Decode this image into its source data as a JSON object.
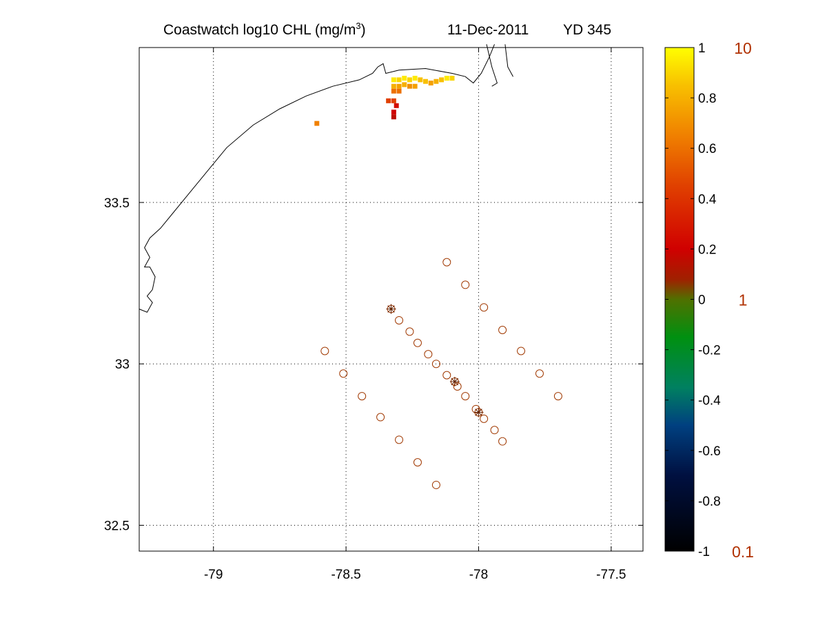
{
  "chart_data": {
    "type": "scatter",
    "title": {
      "left_text": "Coastwatch  log10  CHL (mg/m",
      "superscript": "3",
      "left_close": ")",
      "date": "11-Dec-2011",
      "yearday": "YD 345"
    },
    "xlim": [
      -79.28,
      -77.38
    ],
    "ylim": [
      32.42,
      33.98
    ],
    "xticks": [
      {
        "value": -79,
        "label": "-79"
      },
      {
        "value": -78.5,
        "label": "-78.5"
      },
      {
        "value": -78,
        "label": "-78"
      },
      {
        "value": -77.5,
        "label": "-77.5"
      }
    ],
    "yticks": [
      {
        "value": 33.5,
        "label": "33.5"
      },
      {
        "value": 33,
        "label": "33"
      },
      {
        "value": 32.5,
        "label": "32.5"
      }
    ],
    "grid": true,
    "colorbar": {
      "range": [
        -1,
        1
      ],
      "ticks": [
        "1",
        "0.8",
        "0.6",
        "0.4",
        "0.2",
        "0",
        "-0.2",
        "-0.4",
        "-0.6",
        "-0.8",
        "-1"
      ],
      "tick_values": [
        1,
        0.8,
        0.6,
        0.4,
        0.2,
        0,
        -0.2,
        -0.4,
        -0.6,
        -0.8,
        -1
      ],
      "right_labels": [
        "10",
        "1",
        "0.1"
      ],
      "right_label_values": [
        1,
        0,
        -1
      ],
      "right_label_color": "#b03000",
      "stops": [
        {
          "v": -1.0,
          "color": "#000000"
        },
        {
          "v": -0.7,
          "color": "#001040"
        },
        {
          "v": -0.5,
          "color": "#004080"
        },
        {
          "v": -0.35,
          "color": "#008060"
        },
        {
          "v": -0.15,
          "color": "#009010"
        },
        {
          "v": 0.0,
          "color": "#507000"
        },
        {
          "v": 0.08,
          "color": "#a02000"
        },
        {
          "v": 0.2,
          "color": "#d00000"
        },
        {
          "v": 0.45,
          "color": "#e04000"
        },
        {
          "v": 0.65,
          "color": "#f08000"
        },
        {
          "v": 0.85,
          "color": "#f8c000"
        },
        {
          "v": 1.0,
          "color": "#ffff00"
        }
      ]
    },
    "coastline": [
      [
        -79.28,
        33.17
      ],
      [
        -79.25,
        33.16
      ],
      [
        -79.23,
        33.19
      ],
      [
        -79.25,
        33.21
      ],
      [
        -79.23,
        33.23
      ],
      [
        -79.22,
        33.27
      ],
      [
        -79.24,
        33.3
      ],
      [
        -79.26,
        33.3
      ],
      [
        -79.24,
        33.33
      ],
      [
        -79.26,
        33.36
      ],
      [
        -79.24,
        33.39
      ],
      [
        -79.2,
        33.42
      ],
      [
        -79.15,
        33.47
      ],
      [
        -79.08,
        33.54
      ],
      [
        -79.02,
        33.6
      ],
      [
        -78.95,
        33.67
      ],
      [
        -78.85,
        33.74
      ],
      [
        -78.75,
        33.79
      ],
      [
        -78.65,
        33.83
      ],
      [
        -78.55,
        33.86
      ],
      [
        -78.45,
        33.88
      ],
      [
        -78.4,
        33.9
      ],
      [
        -78.38,
        33.92
      ],
      [
        -78.36,
        33.93
      ],
      [
        -78.35,
        33.9
      ],
      [
        -78.3,
        33.91
      ],
      [
        -78.2,
        33.915
      ],
      [
        -78.1,
        33.9
      ],
      [
        -78.05,
        33.89
      ],
      [
        -78.02,
        33.87
      ],
      [
        -77.99,
        33.9
      ],
      [
        -77.96,
        33.95
      ],
      [
        -77.94,
        33.99
      ]
    ],
    "coastline_segments": [
      [
        [
          -77.97,
          33.99
        ],
        [
          -77.95,
          33.92
        ],
        [
          -77.93,
          33.87
        ],
        [
          -77.95,
          33.86
        ]
      ],
      [
        [
          -77.9,
          33.99
        ],
        [
          -77.89,
          33.92
        ],
        [
          -77.87,
          33.89
        ]
      ]
    ],
    "chl_pixels": [
      {
        "lon": -78.32,
        "lat": 33.88,
        "v": 0.95
      },
      {
        "lon": -78.3,
        "lat": 33.88,
        "v": 0.9
      },
      {
        "lon": -78.28,
        "lat": 33.885,
        "v": 0.95
      },
      {
        "lon": -78.26,
        "lat": 33.88,
        "v": 0.9
      },
      {
        "lon": -78.24,
        "lat": 33.885,
        "v": 0.95
      },
      {
        "lon": -78.22,
        "lat": 33.88,
        "v": 0.85
      },
      {
        "lon": -78.2,
        "lat": 33.875,
        "v": 0.85
      },
      {
        "lon": -78.18,
        "lat": 33.87,
        "v": 0.75
      },
      {
        "lon": -78.16,
        "lat": 33.875,
        "v": 0.8
      },
      {
        "lon": -78.14,
        "lat": 33.88,
        "v": 0.85
      },
      {
        "lon": -78.12,
        "lat": 33.885,
        "v": 0.95
      },
      {
        "lon": -78.1,
        "lat": 33.885,
        "v": 0.9
      },
      {
        "lon": -78.32,
        "lat": 33.86,
        "v": 0.8
      },
      {
        "lon": -78.3,
        "lat": 33.86,
        "v": 0.75
      },
      {
        "lon": -78.28,
        "lat": 33.865,
        "v": 0.8
      },
      {
        "lon": -78.26,
        "lat": 33.86,
        "v": 0.7
      },
      {
        "lon": -78.24,
        "lat": 33.86,
        "v": 0.75
      },
      {
        "lon": -78.32,
        "lat": 33.845,
        "v": 0.6
      },
      {
        "lon": -78.3,
        "lat": 33.845,
        "v": 0.6
      },
      {
        "lon": -78.34,
        "lat": 33.815,
        "v": 0.45
      },
      {
        "lon": -78.32,
        "lat": 33.815,
        "v": 0.45
      },
      {
        "lon": -78.31,
        "lat": 33.8,
        "v": 0.25
      },
      {
        "lon": -78.32,
        "lat": 33.78,
        "v": 0.2
      },
      {
        "lon": -78.32,
        "lat": 33.765,
        "v": 0.15
      },
      {
        "lon": -78.61,
        "lat": 33.745,
        "v": 0.65
      }
    ],
    "stations": [
      {
        "lon": -78.12,
        "lat": 33.315,
        "star": false
      },
      {
        "lon": -78.05,
        "lat": 33.245,
        "star": false
      },
      {
        "lon": -77.98,
        "lat": 33.175,
        "star": false
      },
      {
        "lon": -77.91,
        "lat": 33.105,
        "star": false
      },
      {
        "lon": -77.84,
        "lat": 33.04,
        "star": false
      },
      {
        "lon": -77.77,
        "lat": 32.97,
        "star": false
      },
      {
        "lon": -77.7,
        "lat": 32.9,
        "star": false
      },
      {
        "lon": -78.33,
        "lat": 33.17,
        "star": true
      },
      {
        "lon": -78.3,
        "lat": 33.135,
        "star": false
      },
      {
        "lon": -78.26,
        "lat": 33.1,
        "star": false
      },
      {
        "lon": -78.23,
        "lat": 33.065,
        "star": false
      },
      {
        "lon": -78.19,
        "lat": 33.03,
        "star": false
      },
      {
        "lon": -78.16,
        "lat": 33.0,
        "star": false
      },
      {
        "lon": -78.12,
        "lat": 32.965,
        "star": false
      },
      {
        "lon": -78.09,
        "lat": 32.945,
        "star": true
      },
      {
        "lon": -78.08,
        "lat": 32.93,
        "star": false
      },
      {
        "lon": -78.05,
        "lat": 32.9,
        "star": false
      },
      {
        "lon": -78.01,
        "lat": 32.86,
        "star": false
      },
      {
        "lon": -78.0,
        "lat": 32.85,
        "star": true
      },
      {
        "lon": -77.98,
        "lat": 32.83,
        "star": false
      },
      {
        "lon": -77.94,
        "lat": 32.795,
        "star": false
      },
      {
        "lon": -77.91,
        "lat": 32.76,
        "star": false
      },
      {
        "lon": -78.58,
        "lat": 33.04,
        "star": false
      },
      {
        "lon": -78.51,
        "lat": 32.97,
        "star": false
      },
      {
        "lon": -78.44,
        "lat": 32.9,
        "star": false
      },
      {
        "lon": -78.37,
        "lat": 32.835,
        "star": false
      },
      {
        "lon": -78.3,
        "lat": 32.765,
        "star": false
      },
      {
        "lon": -78.23,
        "lat": 32.695,
        "star": false
      },
      {
        "lon": -78.16,
        "lat": 32.625,
        "star": false
      }
    ],
    "colors": {
      "station_marker": "#a03800",
      "coastline": "#000000",
      "grid": "#000000"
    }
  }
}
